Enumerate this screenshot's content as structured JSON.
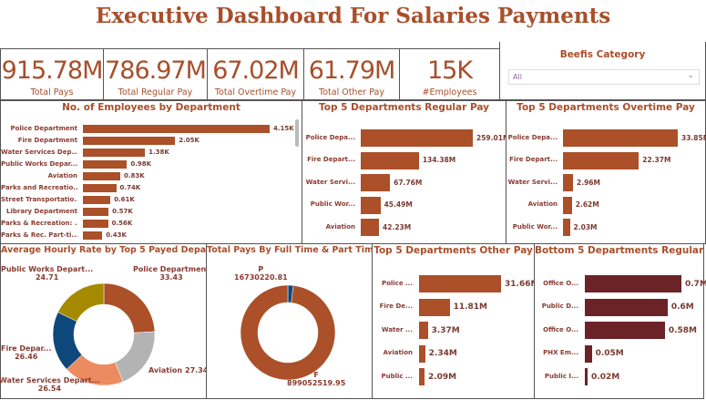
{
  "title": "Executive Dashboard For Salaries Payments",
  "colors": {
    "accent": "#ab5028",
    "dark": "#6b2328",
    "navy": "#0e477a",
    "olive": "#a58a00",
    "grey": "#b3b3b3",
    "salmon": "#ec8b60"
  },
  "kpis": [
    {
      "value": "915.78M",
      "label": "Total Pays"
    },
    {
      "value": "786.97M",
      "label": "Total Regular Pay"
    },
    {
      "value": "67.02M",
      "label": "Total Overtime Pay"
    },
    {
      "value": "61.79M",
      "label": "Total Other Pay"
    },
    {
      "value": "15K",
      "label": "#Employees"
    }
  ],
  "slicer": {
    "title": "Beefis Category",
    "value": "All",
    "icon": "chevron-down-icon"
  },
  "employees_chart": {
    "title": "No. of Employees by Department",
    "categories": [
      "Police Department",
      "Fire Department",
      "Water Services Dep...",
      "Public Works Depar...",
      "Aviation",
      "Parks and Recreatio...",
      "Street Transportatio...",
      "Library Department",
      "Parks & Recreation: ...",
      "Parks & Rec. Part-ti..."
    ],
    "values": [
      4.15,
      2.05,
      1.38,
      0.98,
      0.83,
      0.74,
      0.61,
      0.57,
      0.56,
      0.43
    ],
    "labels": [
      "4.15K",
      "2.05K",
      "1.38K",
      "0.98K",
      "0.83K",
      "0.74K",
      "0.61K",
      "0.57K",
      "0.56K",
      "0.43K"
    ]
  },
  "regular_chart": {
    "title": "Top 5 Departments Regular Pay",
    "categories": [
      "Police Depa...",
      "Fire Depart...",
      "Water Servi...",
      "Public Wor...",
      "Aviation"
    ],
    "values": [
      259.01,
      134.38,
      67.76,
      45.49,
      42.23
    ],
    "labels": [
      "259.01M",
      "134.38M",
      "67.76M",
      "45.49M",
      "42.23M"
    ]
  },
  "overtime_chart": {
    "title": "Top 5 Departments Overtime Pay",
    "categories": [
      "Police Depa...",
      "Fire Depart...",
      "Water Servi...",
      "Aviation",
      "Public Wor..."
    ],
    "values": [
      33.85,
      22.37,
      2.96,
      2.62,
      2.03
    ],
    "labels": [
      "33.85M",
      "22.37M",
      "2.96M",
      "2.62M",
      "2.03M"
    ]
  },
  "other_chart": {
    "title": "Top 5 Departments Other Pay",
    "categories": [
      "Police ...",
      "Fire De...",
      "Water ...",
      "Aviation",
      "Public ..."
    ],
    "values": [
      31.66,
      11.81,
      3.37,
      2.34,
      2.09
    ],
    "labels": [
      "31.66M",
      "11.81M",
      "3.37M",
      "2.34M",
      "2.09M"
    ]
  },
  "bottom_chart": {
    "title": "Bottom 5 Departments Regular Pay",
    "categories": [
      "Office O...",
      "Public D...",
      "Office O...",
      "PHX Em...",
      "Public I..."
    ],
    "values": [
      0.7,
      0.6,
      0.58,
      0.05,
      0.02
    ],
    "labels": [
      "0.7M",
      "0.6M",
      "0.58M",
      "0.05M",
      "0.02M"
    ]
  },
  "hourly_chart": {
    "title": "Average Hourly Rate by Top 5 Payed Department",
    "type": "pie",
    "slices": [
      {
        "name": "Police Department",
        "value": 33.43
      },
      {
        "name": "Aviation",
        "value": 27.34
      },
      {
        "name": "Water Services Depart...",
        "value": 26.54
      },
      {
        "name": "Fire Depar...",
        "value": 26.46
      },
      {
        "name": "Public Works Depart...",
        "value": 24.71
      }
    ]
  },
  "pays_chart": {
    "title": "Total Pays By Full Time & Part Time",
    "type": "pie",
    "slices": [
      {
        "name": "P",
        "value": 16730220.81,
        "label": "16730220.81"
      },
      {
        "name": "F",
        "value": 899052519.95,
        "label": "899052519.95"
      }
    ]
  }
}
